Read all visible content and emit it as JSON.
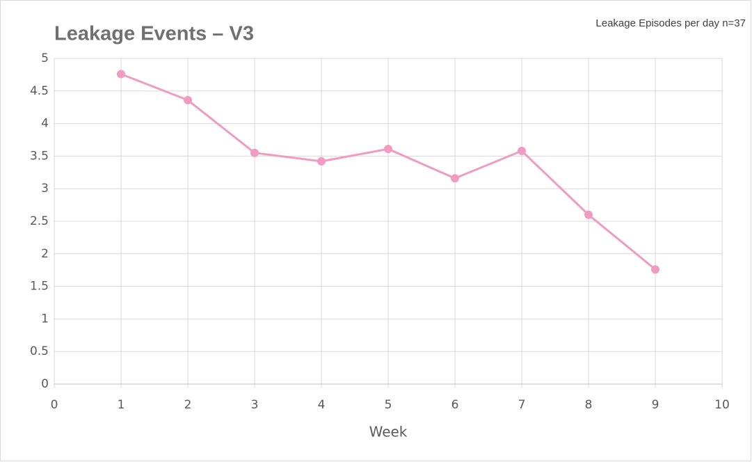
{
  "chart_data": {
    "type": "line",
    "title": "Leakage Events – V3",
    "annotation": "Leakage Episodes per day n=37",
    "x_label": "Week",
    "x": [
      1,
      2,
      3,
      4,
      5,
      6,
      7,
      8,
      9
    ],
    "series": [
      {
        "name": "Leakage Episodes per day",
        "color": "#f09bc2",
        "values": [
          4.76,
          4.36,
          3.55,
          3.42,
          3.61,
          3.16,
          3.58,
          2.6,
          1.76
        ]
      }
    ],
    "xlim": [
      0,
      10
    ],
    "xticks": [
      0,
      1,
      2,
      3,
      4,
      5,
      6,
      7,
      8,
      9,
      10
    ],
    "ylim": [
      0,
      5
    ],
    "yticks": [
      0,
      0.5,
      1,
      1.5,
      2,
      2.5,
      3,
      3.5,
      4,
      4.5,
      5
    ],
    "grid": true
  }
}
